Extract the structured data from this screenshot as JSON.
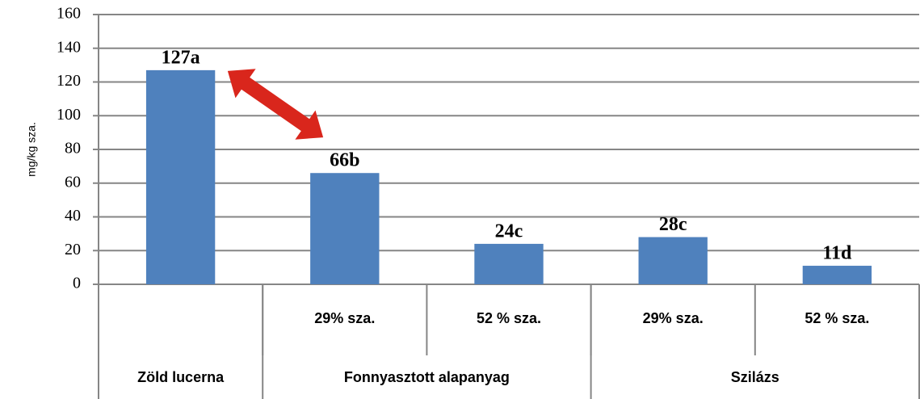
{
  "chart_data": {
    "type": "bar",
    "y_label": "mg/kg sza.",
    "categories": [
      null,
      "29% sza.",
      "52 % sza.",
      "29% sza.",
      "52 % sza."
    ],
    "groups": [
      {
        "name": "Zöld lucerna",
        "span": 1
      },
      {
        "name": "Fonnyasztott alapanyag",
        "span": 2
      },
      {
        "name": "Szilázs",
        "span": 2
      }
    ],
    "values": [
      127,
      66,
      24,
      28,
      11
    ],
    "value_labels": [
      "127a",
      "66b",
      "24c",
      "28c",
      "11d"
    ],
    "color": "#4f81bd",
    "ylim": [
      0,
      160
    ],
    "yticks": [
      0,
      20,
      40,
      60,
      80,
      100,
      120,
      140,
      160
    ],
    "grid": true
  }
}
